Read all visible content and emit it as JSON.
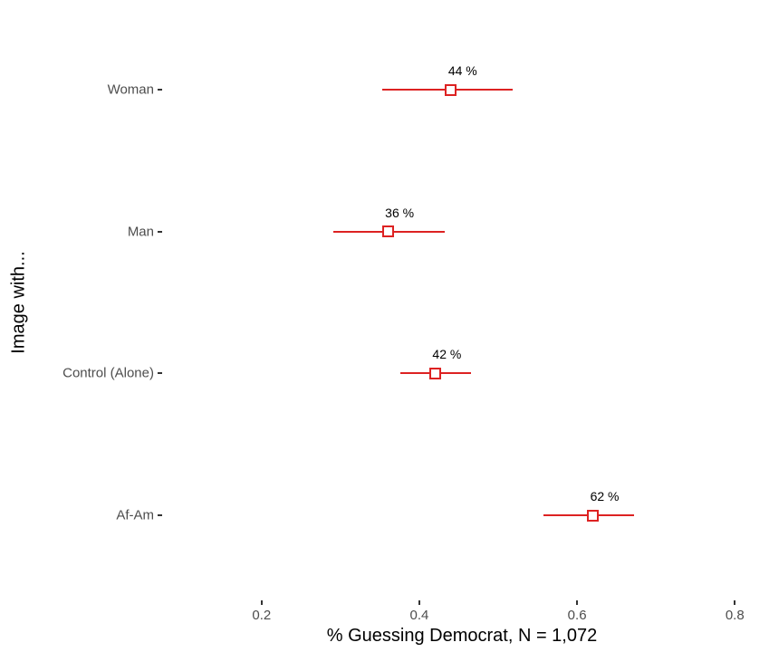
{
  "chart_data": {
    "type": "pointrange",
    "orientation": "horizontal",
    "title": "",
    "xlabel": "% Guessing Democrat, N = 1,072",
    "ylabel": "Image with...",
    "x_ticks": [
      0.2,
      0.4,
      0.6,
      0.8
    ],
    "x_tick_labels": [
      "0.2",
      "0.4",
      "0.6",
      "0.8"
    ],
    "xlim": [
      0.075,
      0.833
    ],
    "grid": false,
    "legend": "none",
    "categories": [
      "Woman",
      "Man",
      "Control (Alone)",
      "Af-Am"
    ],
    "points": [
      {
        "category": "Woman",
        "value": 0.44,
        "ci_low": 0.353,
        "ci_high": 0.518,
        "label": "44 %"
      },
      {
        "category": "Man",
        "value": 0.36,
        "ci_low": 0.291,
        "ci_high": 0.432,
        "label": "36 %"
      },
      {
        "category": "Control (Alone)",
        "value": 0.42,
        "ci_low": 0.376,
        "ci_high": 0.466,
        "label": "42 %"
      },
      {
        "category": "Af-Am",
        "value": 0.62,
        "ci_low": 0.557,
        "ci_high": 0.672,
        "label": "62 %"
      }
    ],
    "colors": {
      "range_line": "#dd2222",
      "marker_border": "#dd2222",
      "marker_fill": "#ffffff",
      "axis_text": "#4d4d4d",
      "tick_mark": "#333333",
      "title_text": "#000000",
      "annotation_text": "#000000",
      "background": "#ffffff"
    }
  }
}
